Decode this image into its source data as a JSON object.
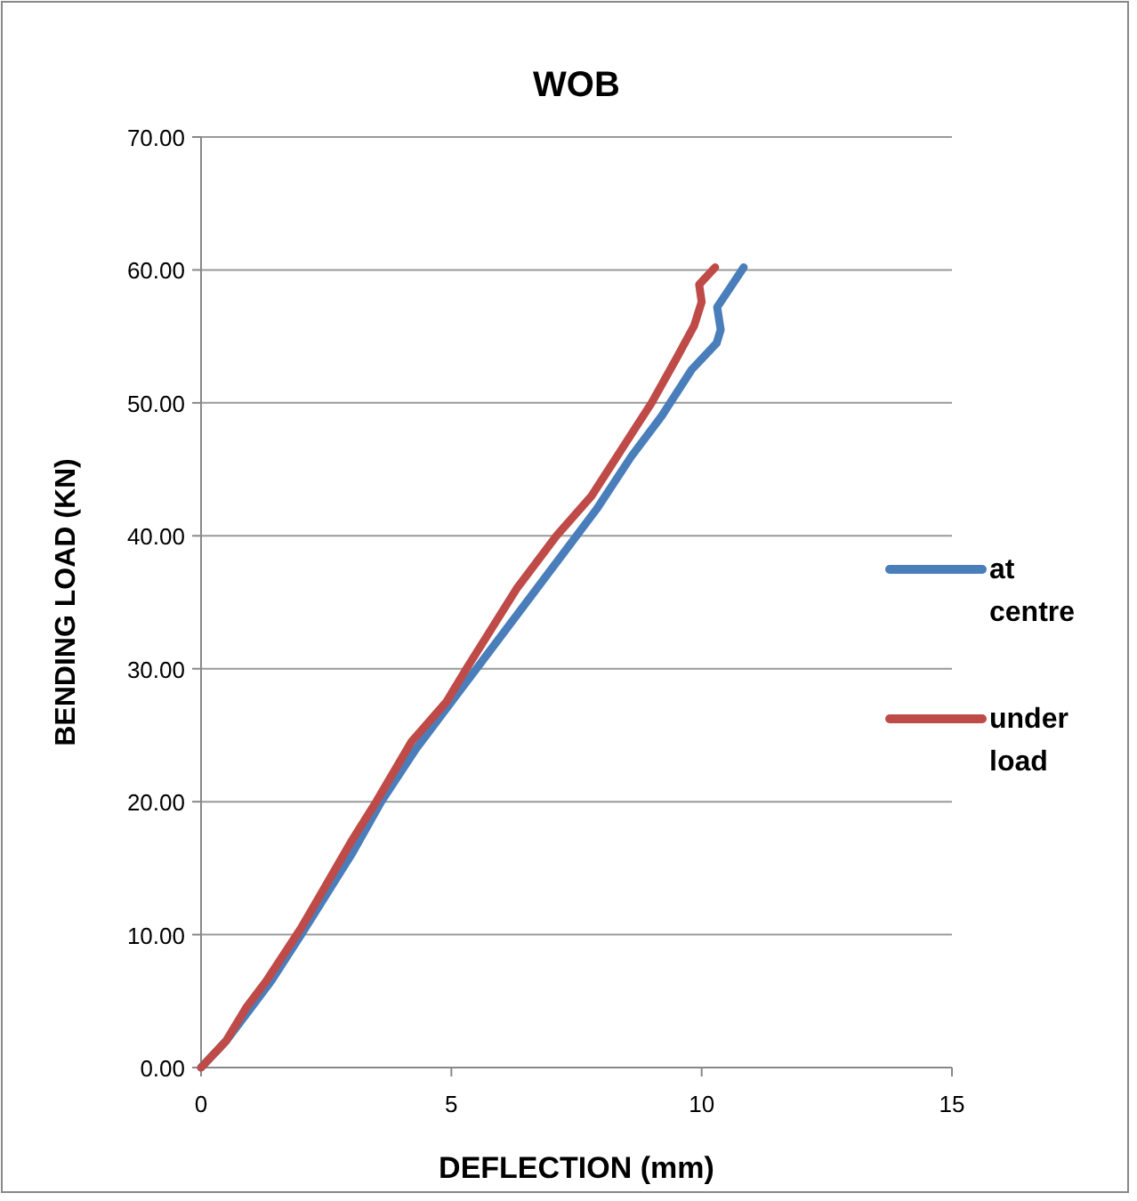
{
  "chart_data": {
    "type": "line",
    "title": "WOB",
    "xlabel": "DEFLECTION (mm)",
    "ylabel": "BENDING LOAD (KN)",
    "xlim": [
      0,
      15
    ],
    "xticks": [
      0,
      5,
      10,
      15
    ],
    "ylim": [
      0,
      70
    ],
    "yticks": [
      {
        "value": 0,
        "label": "0.00"
      },
      {
        "value": 10,
        "label": "10.00"
      },
      {
        "value": 20,
        "label": "20.00"
      },
      {
        "value": 30,
        "label": "30.00"
      },
      {
        "value": 40,
        "label": "40.00"
      },
      {
        "value": 50,
        "label": "50.00"
      },
      {
        "value": 60,
        "label": "60.00"
      },
      {
        "value": 70,
        "label": "70.00"
      }
    ],
    "grid": "y",
    "legend": "right",
    "marker": "none",
    "line_style": "solid",
    "series": [
      {
        "name": "at centre",
        "color": "#4a7ebb",
        "x": [
          0,
          0.5,
          1,
          1.4,
          2,
          3,
          3.6,
          4.3,
          5,
          5.5,
          6.5,
          7.3,
          7.9,
          8.6,
          9.2,
          9.8,
          10.3,
          10.38,
          10.31,
          10.56,
          10.84
        ],
        "values": [
          0,
          2,
          4.5,
          6.5,
          10,
          16,
          20,
          24,
          27.5,
          30,
          35,
          39,
          42,
          46,
          49,
          52.5,
          54.5,
          55.5,
          57.2,
          58.6,
          60.2
        ]
      },
      {
        "name": "under load",
        "color": "#be4b48",
        "x": [
          0,
          0.5,
          0.9,
          1.3,
          2,
          3,
          3.5,
          4.2,
          4.9,
          5.3,
          6.3,
          7.1,
          7.8,
          8.4,
          9,
          9.49,
          9.85,
          10,
          9.95,
          10.27
        ],
        "values": [
          0,
          2,
          4.5,
          6.5,
          10.5,
          17,
          20,
          24.5,
          27.5,
          30,
          36,
          40,
          43,
          46.5,
          50,
          53.3,
          55.8,
          57.6,
          58.9,
          60.2
        ]
      }
    ]
  }
}
